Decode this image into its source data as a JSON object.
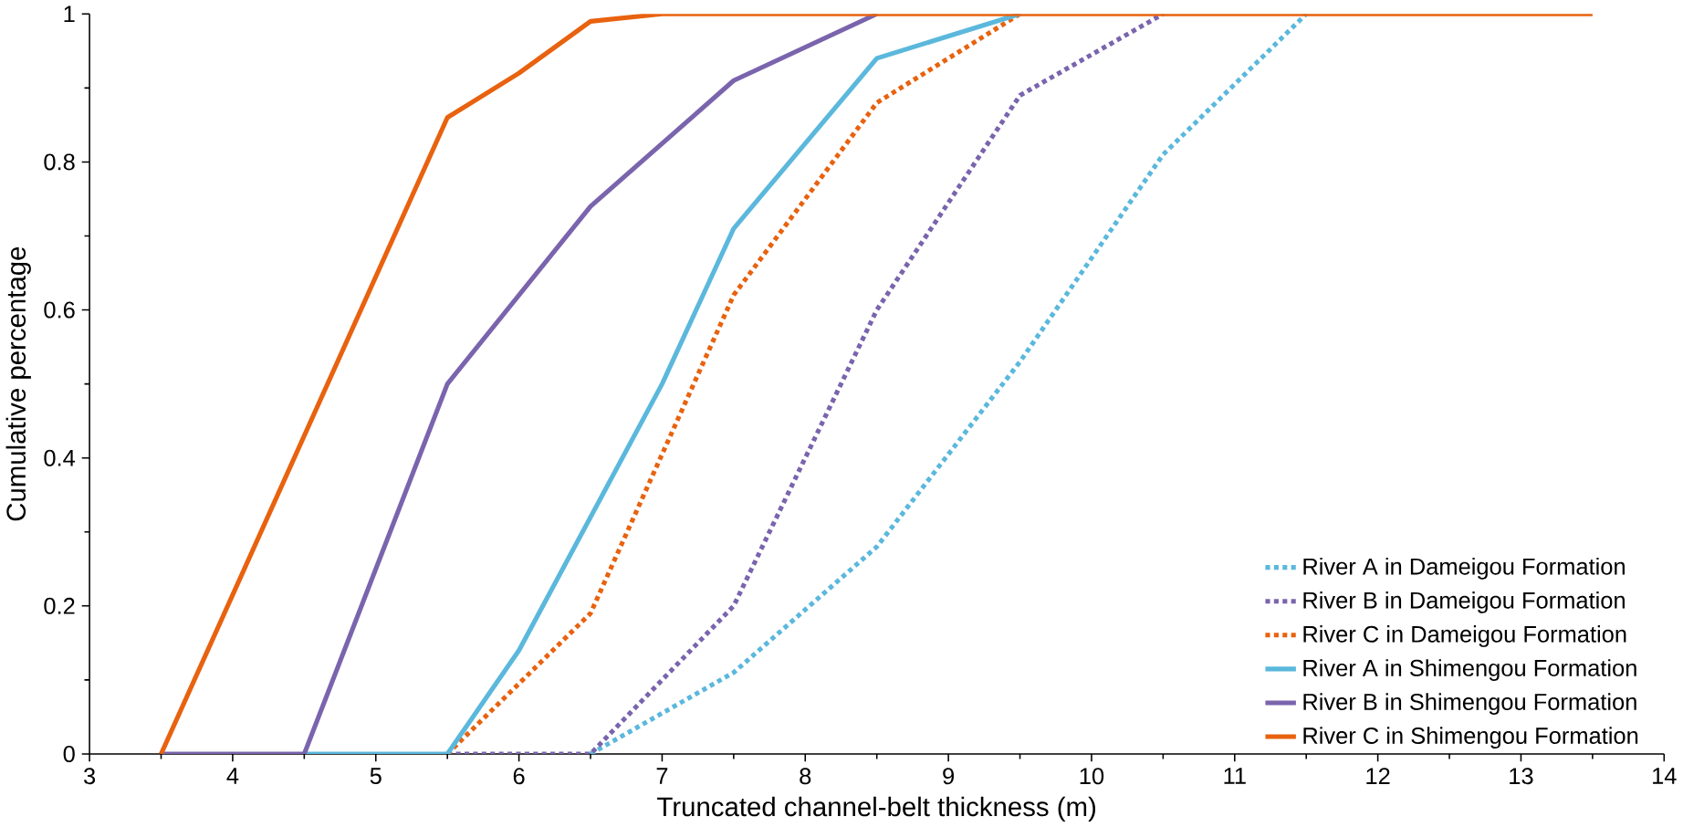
{
  "chart_data": {
    "type": "line",
    "xlabel": "Truncated channel-belt thickness (m)",
    "ylabel": "Cumulative percentage",
    "xlim": [
      3,
      14
    ],
    "ylim": [
      0,
      1
    ],
    "xticks": [
      3,
      4,
      5,
      6,
      7,
      8,
      9,
      10,
      11,
      12,
      13,
      14
    ],
    "yticks": [
      0,
      0.2,
      0.4,
      0.6,
      0.8,
      1
    ],
    "grid": false,
    "legend": "right",
    "marker": "none",
    "series": [
      {
        "name": "River A in Dameigou Formation",
        "color": "#5bb8dc",
        "line_style": "dotted",
        "x": [
          6.5,
          7.5,
          8.5,
          9.5,
          10.5,
          11.5
        ],
        "values": [
          0,
          0.11,
          0.28,
          0.53,
          0.81,
          1
        ]
      },
      {
        "name": "River B in Dameigou Formation",
        "color": "#7a64ad",
        "line_style": "dotted",
        "x": [
          5.5,
          6.5,
          7.5,
          8.5,
          9.5,
          10.5
        ],
        "values": [
          0,
          0,
          0.2,
          0.6,
          0.89,
          1
        ]
      },
      {
        "name": "River C in Dameigou Formation",
        "color": "#e8620f",
        "line_style": "dotted",
        "x": [
          5.5,
          6.5,
          7.5,
          8.5,
          9.5
        ],
        "values": [
          0,
          0.19,
          0.62,
          0.88,
          1
        ]
      },
      {
        "name": "River A in Shimengou Formation",
        "color": "#5bb8dc",
        "line_style": "solid",
        "x": [
          4.5,
          5.5,
          6,
          7,
          7.5,
          8.5,
          9.5
        ],
        "values": [
          0,
          0,
          0.14,
          0.5,
          0.71,
          0.94,
          1
        ]
      },
      {
        "name": "River B in Shimengou Formation",
        "color": "#7a64ad",
        "line_style": "solid",
        "x": [
          3.5,
          4.5,
          5.5,
          6.5,
          7.5,
          8.5
        ],
        "values": [
          0,
          0,
          0.5,
          0.74,
          0.91,
          1
        ]
      },
      {
        "name": "River C in Shimengou Formation",
        "color": "#e8620f",
        "line_style": "solid",
        "x": [
          3.5,
          5.5,
          6,
          6.5,
          7,
          13.5
        ],
        "values": [
          0,
          0.86,
          0.92,
          0.99,
          1,
          1
        ]
      }
    ]
  }
}
